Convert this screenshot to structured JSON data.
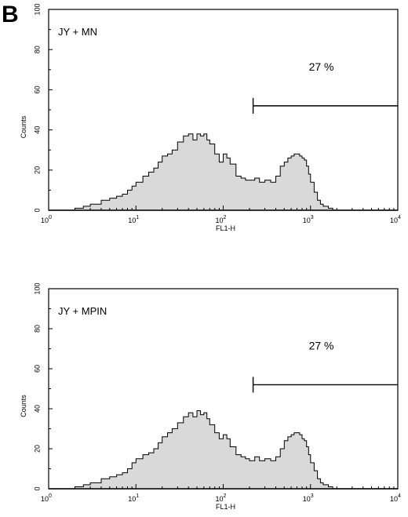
{
  "figure": {
    "panel_letter": "B"
  },
  "chart_data": [
    {
      "type": "area",
      "chart_kind": "flow cytometry histogram",
      "sample_label": "JY + MN",
      "xlabel": "FL1-H",
      "ylabel": "Counts",
      "x_scale": "log",
      "xlim": [
        1,
        10000
      ],
      "ylim": [
        0,
        100
      ],
      "x_ticks": [
        {
          "base": "10",
          "exp": "0"
        },
        {
          "base": "10",
          "exp": "1"
        },
        {
          "base": "10",
          "exp": "2"
        },
        {
          "base": "10",
          "exp": "3"
        },
        {
          "base": "10",
          "exp": "4"
        }
      ],
      "y_ticks": [
        "0",
        "20",
        "40",
        "60",
        "80",
        "100"
      ],
      "gate": {
        "start": 220,
        "end": 10000,
        "level": 52,
        "percent_label": "27 %"
      },
      "fill_color": "#d9d9d9",
      "series": [
        {
          "x": [
            1.0,
            1.5,
            2.0,
            2.5,
            3.0,
            4.0,
            5.0,
            6.0,
            7.0,
            8.0,
            9.0,
            10,
            12,
            14,
            16,
            18,
            20,
            23,
            26,
            30,
            35,
            40,
            45,
            50,
            55,
            60,
            65,
            70,
            80,
            90,
            100,
            110,
            120,
            140,
            160,
            180,
            200,
            230,
            260,
            300,
            350,
            400,
            450,
            500,
            550,
            600,
            650,
            700,
            750,
            800,
            850,
            900,
            950,
            1000,
            1100,
            1200,
            1300,
            1400,
            1600,
            1800,
            2000
          ],
          "y": [
            0,
            0,
            1,
            2,
            3,
            5,
            6,
            7,
            8,
            10,
            12,
            14,
            17,
            19,
            21,
            24,
            27,
            28,
            30,
            34,
            37,
            38,
            35,
            38,
            37,
            38,
            35,
            33,
            28,
            24,
            28,
            26,
            23,
            17,
            16,
            15,
            15,
            16,
            14,
            15,
            14,
            17,
            22,
            24,
            26,
            27,
            28,
            28,
            27,
            26,
            25,
            22,
            18,
            14,
            9,
            5,
            3,
            2,
            1,
            0,
            0
          ]
        }
      ]
    },
    {
      "type": "area",
      "chart_kind": "flow cytometry histogram",
      "sample_label": "JY + MPIN",
      "xlabel": "FL1-H",
      "ylabel": "Counts",
      "x_scale": "log",
      "xlim": [
        1,
        10000
      ],
      "ylim": [
        0,
        100
      ],
      "x_ticks": [
        {
          "base": "10",
          "exp": "0"
        },
        {
          "base": "10",
          "exp": "1"
        },
        {
          "base": "10",
          "exp": "2"
        },
        {
          "base": "10",
          "exp": "3"
        },
        {
          "base": "10",
          "exp": "4"
        }
      ],
      "y_ticks": [
        "0",
        "20",
        "40",
        "60",
        "80",
        "100"
      ],
      "gate": {
        "start": 220,
        "end": 10000,
        "level": 52,
        "percent_label": "27 %"
      },
      "fill_color": "#d9d9d9",
      "series": [
        {
          "x": [
            1.0,
            1.5,
            2.0,
            2.5,
            3.0,
            4.0,
            5.0,
            6.0,
            7.0,
            8.0,
            9.0,
            10,
            12,
            14,
            16,
            18,
            20,
            23,
            26,
            30,
            35,
            40,
            45,
            50,
            55,
            60,
            65,
            70,
            80,
            90,
            100,
            110,
            120,
            140,
            160,
            180,
            200,
            230,
            260,
            300,
            350,
            400,
            450,
            500,
            550,
            600,
            650,
            700,
            750,
            800,
            850,
            900,
            950,
            1000,
            1100,
            1200,
            1300,
            1400,
            1600,
            1800,
            2000
          ],
          "y": [
            0,
            0,
            1,
            2,
            3,
            5,
            6,
            7,
            8,
            10,
            13,
            15,
            17,
            18,
            20,
            23,
            26,
            28,
            30,
            33,
            36,
            38,
            36,
            39,
            37,
            38,
            35,
            32,
            28,
            25,
            27,
            25,
            21,
            17,
            16,
            15,
            14,
            16,
            14,
            15,
            14,
            16,
            20,
            24,
            26,
            27,
            28,
            28,
            27,
            25,
            24,
            21,
            17,
            13,
            9,
            5,
            3,
            2,
            1,
            0,
            0
          ]
        }
      ]
    }
  ]
}
